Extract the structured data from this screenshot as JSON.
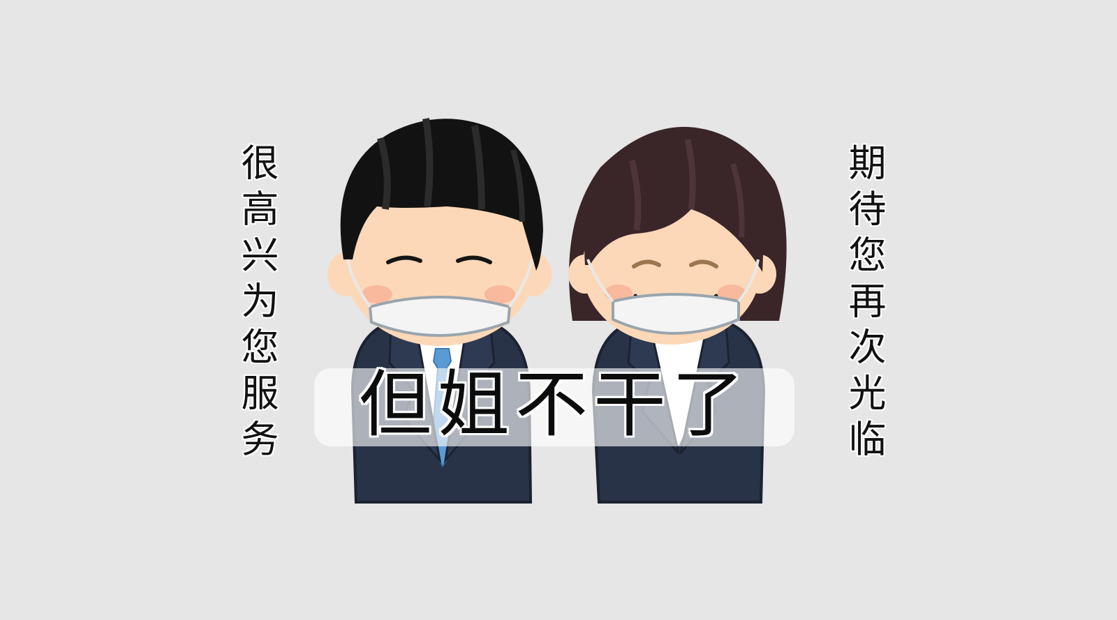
{
  "left_vertical_caption": "很高兴为您服务",
  "right_vertical_caption": "期待您再次光临",
  "bottom_caption": "但姐不干了",
  "colors": {
    "background": "#e6e6e6",
    "suit": "#283347",
    "male_hair": "#121212",
    "female_hair": "#3a2529",
    "skin": "#fcd8b8",
    "mask": "#f4f4f4",
    "tie": "#5b9bd5"
  }
}
